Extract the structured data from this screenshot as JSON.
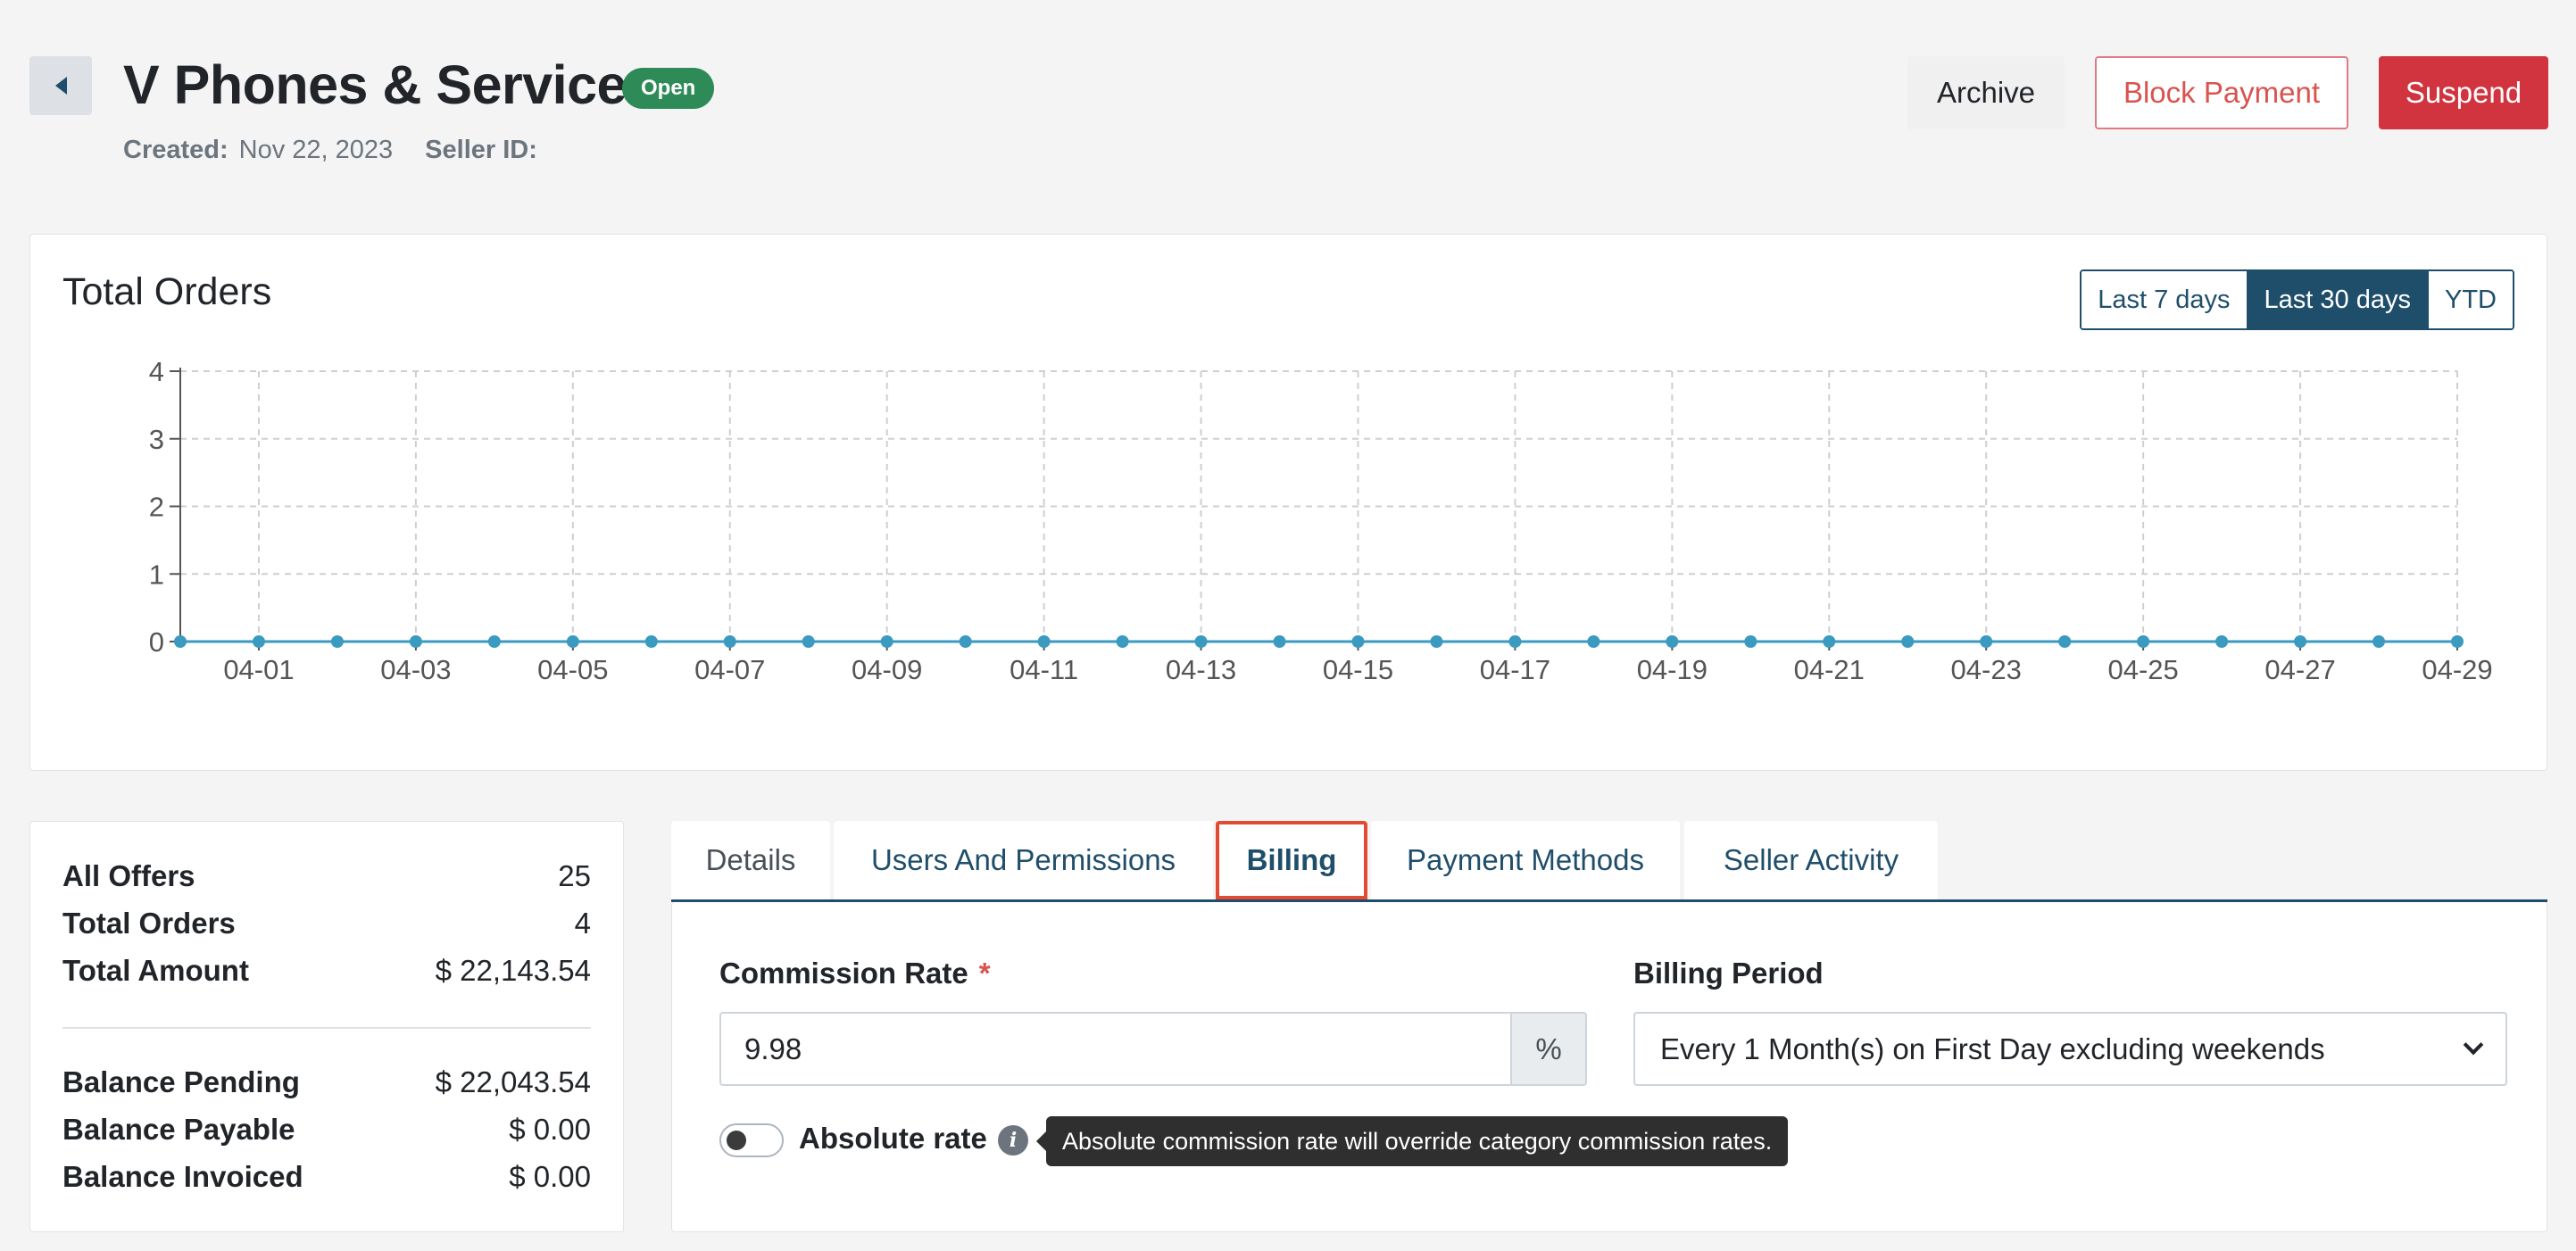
{
  "header": {
    "title": "V Phones & Service",
    "status": "Open",
    "created_label": "Created:",
    "created_value": "Nov 22, 2023",
    "seller_id_label": "Seller ID:",
    "seller_id_value": "",
    "archive_label": "Archive",
    "block_payment_label": "Block Payment",
    "suspend_label": "Suspend"
  },
  "chart_card": {
    "title": "Total Orders",
    "ranges": [
      "Last 7 days",
      "Last 30 days",
      "YTD"
    ],
    "active_range": "Last 30 days"
  },
  "chart_data": {
    "type": "line",
    "title": "Total Orders",
    "x": [
      "03-31",
      "04-01",
      "04-02",
      "04-03",
      "04-04",
      "04-05",
      "04-06",
      "04-07",
      "04-08",
      "04-09",
      "04-10",
      "04-11",
      "04-12",
      "04-13",
      "04-14",
      "04-15",
      "04-16",
      "04-17",
      "04-18",
      "04-19",
      "04-20",
      "04-21",
      "04-22",
      "04-23",
      "04-24",
      "04-25",
      "04-26",
      "04-27",
      "04-28",
      "04-29"
    ],
    "x_tick_labels": [
      "04-01",
      "04-03",
      "04-05",
      "04-07",
      "04-09",
      "04-11",
      "04-13",
      "04-15",
      "04-17",
      "04-19",
      "04-21",
      "04-23",
      "04-25",
      "04-27",
      "04-29"
    ],
    "series": [
      {
        "values": [
          0,
          0,
          0,
          0,
          0,
          0,
          0,
          0,
          0,
          0,
          0,
          0,
          0,
          0,
          0,
          0,
          0,
          0,
          0,
          0,
          0,
          0,
          0,
          0,
          0,
          0,
          0,
          0,
          0,
          0
        ]
      }
    ],
    "ylim": [
      0,
      4
    ],
    "y_ticks": [
      "0",
      "1",
      "2",
      "3",
      "4"
    ],
    "grid": true,
    "line_color": "#3a9ac0"
  },
  "summary": {
    "rows": [
      {
        "label": "All Offers",
        "value": "25"
      },
      {
        "label": "Total Orders",
        "value": "4"
      },
      {
        "label": "Total Amount",
        "value": "$ 22,143.54"
      }
    ],
    "balance_rows": [
      {
        "label": "Balance Pending",
        "value": "$ 22,043.54"
      },
      {
        "label": "Balance Payable",
        "value": "$ 0.00"
      },
      {
        "label": "Balance Invoiced",
        "value": "$ 0.00"
      }
    ]
  },
  "tabs": [
    {
      "label": "Details"
    },
    {
      "label": "Users And Permissions"
    },
    {
      "label": "Billing"
    },
    {
      "label": "Payment Methods"
    },
    {
      "label": "Seller Activity"
    }
  ],
  "billing": {
    "commission_label": "Commission Rate",
    "required_mark": "*",
    "commission_value": "9.98",
    "commission_addon": "%",
    "period_label": "Billing Period",
    "period_value": "Every 1 Month(s) on First Day excluding weekends",
    "absolute_label": "Absolute rate",
    "absolute_on": false,
    "info_glyph": "i",
    "tooltip": "Absolute commission rate will override category commission rates."
  },
  "colors": {
    "primary": "#1f4e6b",
    "danger": "#d1343f",
    "success_badge": "#2e8b57",
    "highlight_outline": "#e24a32"
  }
}
